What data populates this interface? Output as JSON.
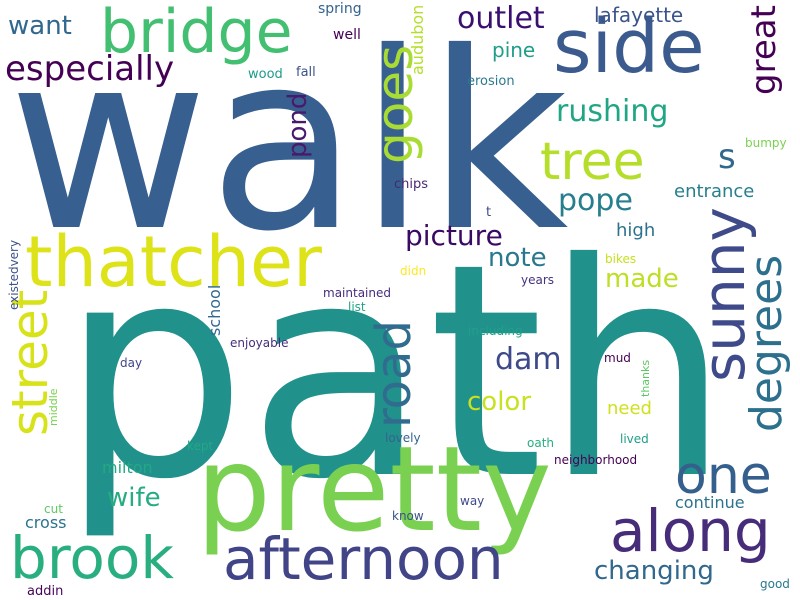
{
  "words": [
    {
      "text": "walk",
      "color": "#375f8f",
      "rot": 0
    },
    {
      "text": "path",
      "color": "#21918c",
      "rot": 0
    },
    {
      "text": "pretty",
      "color": "#7ad151",
      "rot": 0
    },
    {
      "text": "side",
      "color": "#3b5a8d",
      "rot": 0
    },
    {
      "text": "thatcher",
      "color": "#dde318",
      "rot": 0
    },
    {
      "text": "bridge",
      "color": "#43bf71",
      "rot": 0
    },
    {
      "text": "afternoon",
      "color": "#414487",
      "rot": 0
    },
    {
      "text": "brook",
      "color": "#29af7f",
      "rot": 0
    },
    {
      "text": "along",
      "color": "#472c7a",
      "rot": 0
    },
    {
      "text": "sunny",
      "color": "#3e4a89",
      "rot": -90
    },
    {
      "text": "tree",
      "color": "#b5de2b",
      "rot": 0
    },
    {
      "text": "one",
      "color": "#355f8d",
      "rot": 0
    },
    {
      "text": "street",
      "color": "#d8e219",
      "rot": -90
    },
    {
      "text": "goes",
      "color": "#a8db34",
      "rot": -90
    },
    {
      "text": "road",
      "color": "#2f6c8e",
      "rot": -90
    },
    {
      "text": "degrees",
      "color": "#2d708e",
      "rot": -90
    },
    {
      "text": "especially",
      "color": "#440154",
      "rot": 0
    },
    {
      "text": "great",
      "color": "#440154",
      "rot": -90
    },
    {
      "text": "s",
      "color": "#31688e",
      "rot": 0
    },
    {
      "text": "rushing",
      "color": "#21a685",
      "rot": 0
    },
    {
      "text": "pope",
      "color": "#277f8e",
      "rot": 0
    },
    {
      "text": "outlet",
      "color": "#3b0f70",
      "rot": 0
    },
    {
      "text": "picture",
      "color": "#3a0963",
      "rot": 0
    },
    {
      "text": "dam",
      "color": "#3e4989",
      "rot": 0
    },
    {
      "text": "changing",
      "color": "#31688e",
      "rot": 0
    },
    {
      "text": "wife",
      "color": "#25ac82",
      "rot": 0
    },
    {
      "text": "want",
      "color": "#31688e",
      "rot": 0
    },
    {
      "text": "pond",
      "color": "#481a6c",
      "rot": -90
    },
    {
      "text": "color",
      "color": "#cae11f",
      "rot": 0
    },
    {
      "text": "note",
      "color": "#2a788e",
      "rot": 0
    },
    {
      "text": "made",
      "color": "#bddf26",
      "rot": 0
    },
    {
      "text": "lafayette",
      "color": "#3a548c",
      "rot": 0
    },
    {
      "text": "pine",
      "color": "#1f9e89",
      "rot": 0
    },
    {
      "text": "entrance",
      "color": "#277f8e",
      "rot": 0
    },
    {
      "text": "high",
      "color": "#2c728e",
      "rot": 0
    },
    {
      "text": "need",
      "color": "#d0e11c",
      "rot": 0
    },
    {
      "text": "continue",
      "color": "#2c728e",
      "rot": 0
    },
    {
      "text": "milton",
      "color": "#22a884",
      "rot": 0
    },
    {
      "text": "cross",
      "color": "#2c728e",
      "rot": 0
    },
    {
      "text": "school",
      "color": "#31688e",
      "rot": -90
    },
    {
      "text": "audubon",
      "color": "#b5de2b",
      "rot": -90
    },
    {
      "text": "spring",
      "color": "#33638d",
      "rot": 0
    },
    {
      "text": "well",
      "color": "#440154",
      "rot": 0
    },
    {
      "text": "wood",
      "color": "#1e9b8a",
      "rot": 0
    },
    {
      "text": "fall",
      "color": "#3b528b",
      "rot": 0
    },
    {
      "text": "erosion",
      "color": "#2a788e",
      "rot": 0
    },
    {
      "text": "chips",
      "color": "#482878",
      "rot": 0
    },
    {
      "text": "t",
      "color": "#3e4a89",
      "rot": 0
    },
    {
      "text": "bumpy",
      "color": "#7ad151",
      "rot": 0
    },
    {
      "text": "existedvery",
      "color": "#3b528b",
      "rot": -90
    },
    {
      "text": "didn",
      "color": "#fde725",
      "rot": 0
    },
    {
      "text": "bikes",
      "color": "#c8e020",
      "rot": 0
    },
    {
      "text": "years",
      "color": "#46337e",
      "rot": 0
    },
    {
      "text": "maintained",
      "color": "#472d7b",
      "rot": 0
    },
    {
      "text": "list",
      "color": "#20a486",
      "rot": 0
    },
    {
      "text": "including",
      "color": "#1fa088",
      "rot": 0
    },
    {
      "text": "enjoyable",
      "color": "#472d7b",
      "rot": 0
    },
    {
      "text": "day",
      "color": "#404688",
      "rot": 0
    },
    {
      "text": "mud",
      "color": "#440154",
      "rot": 0
    },
    {
      "text": "thanks",
      "color": "#5cc863",
      "rot": -90
    },
    {
      "text": "middle",
      "color": "#7ad151",
      "rot": -90
    },
    {
      "text": "kept",
      "color": "#22a884",
      "rot": 0
    },
    {
      "text": "lovely",
      "color": "#32658e",
      "rot": 0
    },
    {
      "text": "oath",
      "color": "#27ad81",
      "rot": 0
    },
    {
      "text": "lived",
      "color": "#1f9e89",
      "rot": 0
    },
    {
      "text": "neighborhood",
      "color": "#440154",
      "rot": 0
    },
    {
      "text": "way",
      "color": "#3e4a89",
      "rot": 0
    },
    {
      "text": "know",
      "color": "#3b528b",
      "rot": 0
    },
    {
      "text": "cut",
      "color": "#5ec962",
      "rot": 0
    },
    {
      "text": "addin",
      "color": "#450559",
      "rot": 0
    },
    {
      "text": "good",
      "color": "#2a788e",
      "rot": 0
    }
  ]
}
